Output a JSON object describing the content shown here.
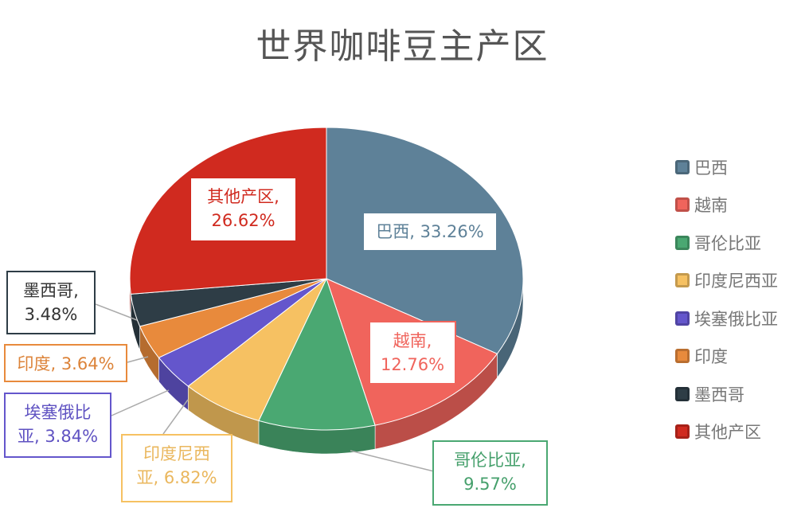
{
  "chart_data": {
    "type": "pie",
    "title": "世界咖啡豆主产区",
    "style": "3d",
    "legend_position": "right",
    "slices": [
      {
        "name": "巴西",
        "value": 33.26,
        "color": "#5e8198"
      },
      {
        "name": "越南",
        "value": 12.76,
        "color": "#f0645c"
      },
      {
        "name": "哥伦比亚",
        "value": 9.57,
        "color": "#4aa872"
      },
      {
        "name": "印度尼西亚",
        "value": 6.82,
        "color": "#f6c162"
      },
      {
        "name": "埃塞俄比亚",
        "value": 3.84,
        "color": "#6456cc"
      },
      {
        "name": "印度",
        "value": 3.64,
        "color": "#e88a3c"
      },
      {
        "name": "墨西哥",
        "value": 3.48,
        "color": "#2e3d46"
      },
      {
        "name": "其他产区",
        "value": 26.62,
        "color": "#d02a1f"
      }
    ]
  }
}
